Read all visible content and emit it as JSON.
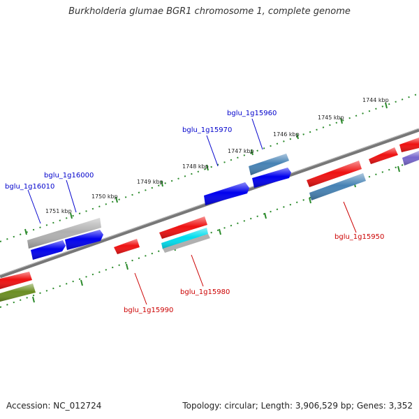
{
  "title": "Burkholderia glumae BGR1 chromosome 1, complete genome",
  "footer": {
    "accession": "Accession: NC_012724",
    "summary": "Topology: circular; Length: 3,906,529 bp; Genes: 3,352"
  },
  "ticks": {
    "outer": [
      {
        "label": "1744 kbp"
      },
      {
        "label": "1745 kbp"
      },
      {
        "label": "1746 kbp"
      },
      {
        "label": "1747 kbp"
      },
      {
        "label": "1748 kbp"
      },
      {
        "label": "1749 kbp"
      },
      {
        "label": "1750 kbp"
      },
      {
        "label": "1751 kbp"
      }
    ]
  },
  "genes": {
    "top": [
      {
        "locus": "bglu_1g16010"
      },
      {
        "locus": "bglu_1g16000"
      },
      {
        "locus": "bglu_1g15970"
      },
      {
        "locus": "bglu_1g15960"
      }
    ],
    "bottom": [
      {
        "locus": "bglu_1g15950"
      },
      {
        "locus": "bglu_1g15980"
      },
      {
        "locus": "bglu_1g15990"
      }
    ]
  },
  "colors": {
    "forward_label": "#0000cc",
    "reverse_label": "#cc0000",
    "backbone": "#777777",
    "tick": "#2a8a2a",
    "blue": "#0000ee",
    "red": "#ee1111",
    "steelblue": "#4682b4",
    "gray": "#b0b0b0",
    "cyan": "#00ddee",
    "olive": "#6b8e23",
    "purple": "#7766cc"
  }
}
